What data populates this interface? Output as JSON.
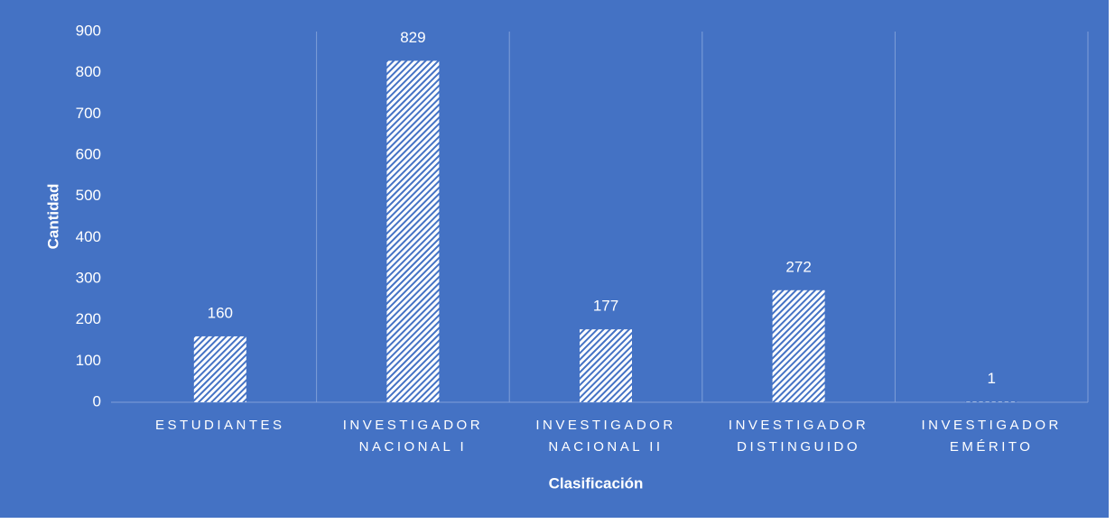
{
  "chart_data": {
    "type": "bar",
    "x_label": "Clasificación",
    "y_label": "Cantidad",
    "categories": [
      "ESTUDIANTES",
      "INVESTIGADOR NACIONAL I",
      "INVESTIGADOR NACIONAL II",
      "INVESTIGADOR DISTINGUIDO",
      "INVESTIGADOR EMÉRITO"
    ],
    "values": [
      160,
      829,
      177,
      272,
      1
    ],
    "color": "#4472c4",
    "ylim": [
      0,
      900
    ],
    "yticks": [
      0,
      100,
      200,
      300,
      400,
      500,
      600,
      700,
      800,
      900
    ]
  }
}
